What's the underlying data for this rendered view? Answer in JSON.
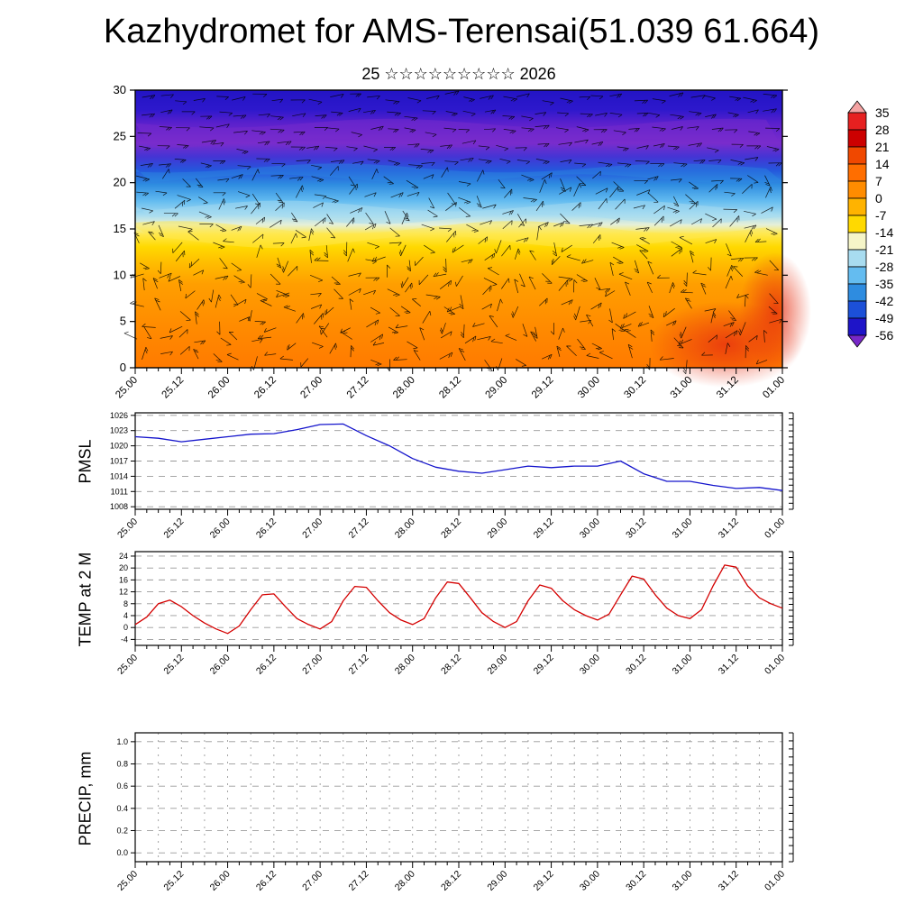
{
  "title": "Kazhydromet for AMS-Terensai(51.039 61.664)",
  "subtitle": "25 ☆☆☆☆☆☆☆☆☆ 2026",
  "x_ticks": [
    "25.00",
    "25.12",
    "26.00",
    "26.12",
    "27.00",
    "27.12",
    "28.00",
    "28.12",
    "29.00",
    "29.12",
    "30.00",
    "30.12",
    "31.00",
    "31.12",
    "01.00"
  ],
  "chart_data": [
    {
      "id": "xsec",
      "type": "heatmap",
      "description": "Time-height cross-section: temperature shading (deg C) with wind barbs overlaid",
      "ylim": [
        0,
        30
      ],
      "y_ticks": [
        0,
        5,
        10,
        15,
        20,
        25,
        30
      ],
      "colorbar_labels": [
        35,
        28,
        21,
        14,
        7,
        0,
        -7,
        -14,
        -21,
        -28,
        -35,
        -42,
        -49,
        -56
      ],
      "colorbar_colors": [
        "#F4A3A3",
        "#E62020",
        "#CC0000",
        "#F04800",
        "#FF6E00",
        "#FF8C00",
        "#FFB300",
        "#FFD900",
        "#F5F5C8",
        "#A8DCF0",
        "#64BCF0",
        "#2E8CE0",
        "#1C50D8",
        "#1E14C8",
        "#7828C8"
      ],
      "gradient_stops": [
        {
          "pos": 0.0,
          "color": "#2314C4"
        },
        {
          "pos": 0.07,
          "color": "#2D18CC"
        },
        {
          "pos": 0.12,
          "color": "#5A20CC"
        },
        {
          "pos": 0.19,
          "color": "#7A2CCC"
        },
        {
          "pos": 0.24,
          "color": "#4434D4"
        },
        {
          "pos": 0.29,
          "color": "#2458DC"
        },
        {
          "pos": 0.34,
          "color": "#2E8CE0"
        },
        {
          "pos": 0.4,
          "color": "#64BCF0"
        },
        {
          "pos": 0.45,
          "color": "#A8DCF0"
        },
        {
          "pos": 0.485,
          "color": "#E6F0D8"
        },
        {
          "pos": 0.52,
          "color": "#FFE84A"
        },
        {
          "pos": 0.565,
          "color": "#FFD900"
        },
        {
          "pos": 0.62,
          "color": "#FFBE00"
        },
        {
          "pos": 0.7,
          "color": "#FF9E00"
        },
        {
          "pos": 0.86,
          "color": "#FF8A00"
        },
        {
          "pos": 1.0,
          "color": "#FF7A00"
        }
      ]
    },
    {
      "id": "pmsl",
      "type": "line",
      "name": "PMSL",
      "ylabel": "PMSL",
      "color": "#1414CC",
      "ylim": [
        1007.5,
        1026.5
      ],
      "y_ticks": [
        1008,
        1011,
        1014,
        1017,
        1020,
        1023,
        1026
      ],
      "x_step_hours": 6,
      "values": [
        1021.8,
        1021.5,
        1020.8,
        1021.3,
        1021.8,
        1022.3,
        1022.4,
        1023.2,
        1024.2,
        1024.3,
        1022.0,
        1020.0,
        1017.5,
        1015.8,
        1015.0,
        1014.6,
        1015.3,
        1016.0,
        1015.7,
        1016.0,
        1016.0,
        1017.0,
        1014.5,
        1013.0,
        1013.0,
        1012.2,
        1011.6,
        1011.8,
        1011.2
      ]
    },
    {
      "id": "temp2m",
      "type": "line",
      "name": "TEMP at 2 M",
      "ylabel": "TEMP at 2 M",
      "color": "#D40000",
      "ylim": [
        -6,
        25.5
      ],
      "y_ticks": [
        -4,
        0,
        4,
        8,
        12,
        16,
        20,
        24
      ],
      "x_step_hours": 3,
      "values": [
        1,
        3.5,
        8,
        9.2,
        7,
        4,
        1.5,
        -0.5,
        -2,
        0.5,
        6,
        11,
        11.3,
        7,
        3,
        1,
        -0.5,
        2,
        9,
        13.8,
        13.5,
        9,
        5,
        2.5,
        1,
        3,
        10,
        15.3,
        14.8,
        10,
        5,
        2,
        0,
        2,
        9,
        14.3,
        13.2,
        9,
        6,
        4,
        2.5,
        4.5,
        11,
        17.3,
        16.3,
        11,
        6.5,
        4,
        3,
        6,
        14,
        21,
        20.3,
        14,
        10,
        8,
        6.5
      ]
    },
    {
      "id": "precip",
      "type": "line",
      "name": "PRECIP, mm",
      "ylabel": "PRECIP, mm",
      "color": "#00A000",
      "ylim": [
        -0.08,
        1.08
      ],
      "y_ticks": [
        0,
        0.2,
        0.4,
        0.6,
        0.8,
        1
      ],
      "y_decimals": 1,
      "x_step_hours": 6,
      "v_grid": true,
      "values": []
    }
  ]
}
